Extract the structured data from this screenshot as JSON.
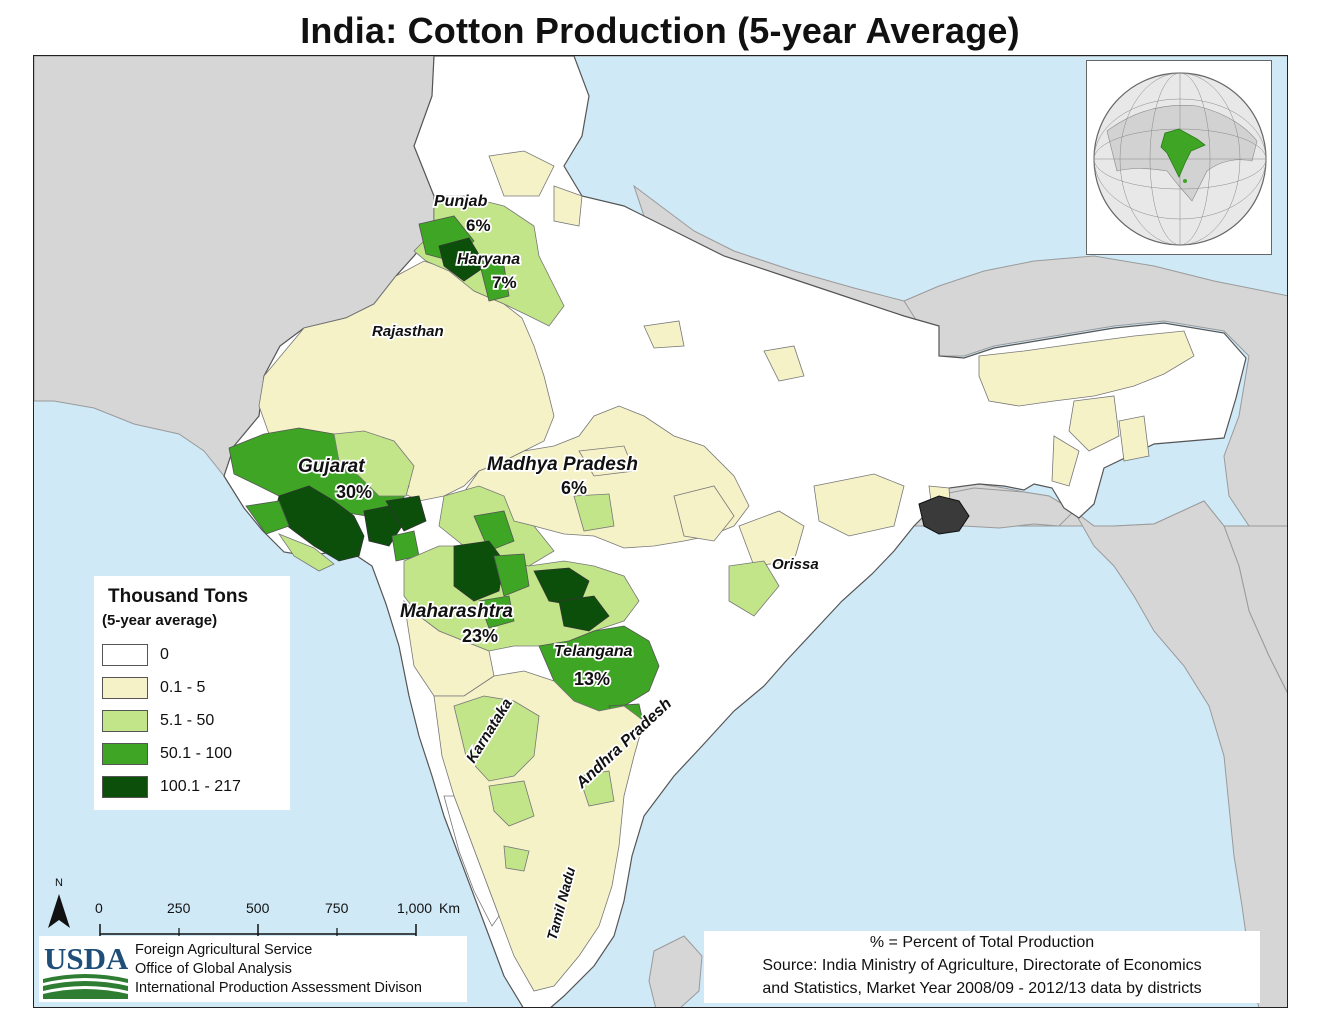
{
  "title": "India: Cotton Production (5-year Average)",
  "colors": {
    "water": "#cfe9f7",
    "neighbor_land": "#d6d6d6",
    "class_0": "#ffffff",
    "class_1": "#f5f2c8",
    "class_2": "#c2e589",
    "class_3": "#3fa524",
    "class_4": "#0b4f0b",
    "usda_blue": "#1f4e79",
    "usda_green": "#2e7d32"
  },
  "states": [
    {
      "name": "Punjab",
      "share": "6%"
    },
    {
      "name": "Haryana",
      "share": "7%"
    },
    {
      "name": "Rajasthan",
      "share": ""
    },
    {
      "name": "Gujarat",
      "share": "30%"
    },
    {
      "name": "Madhya Pradesh",
      "share": "6%"
    },
    {
      "name": "Maharashtra",
      "share": "23%"
    },
    {
      "name": "Telangana",
      "share": "13%"
    },
    {
      "name": "Orissa",
      "share": ""
    },
    {
      "name": "Karnataka",
      "share": ""
    },
    {
      "name": "Andhra Pradesh",
      "share": ""
    },
    {
      "name": "Tamil Nadu",
      "share": ""
    }
  ],
  "legend": {
    "title": "Thousand Tons",
    "subtitle": "(5-year average)",
    "classes": [
      {
        "label": "0",
        "color": "#ffffff"
      },
      {
        "label": "0.1 - 5",
        "color": "#f5f2c8"
      },
      {
        "label": "5.1 - 50",
        "color": "#c2e589"
      },
      {
        "label": "50.1 - 100",
        "color": "#3fa524"
      },
      {
        "label": "100.1 - 217",
        "color": "#0b4f0b"
      }
    ]
  },
  "scale_bar": {
    "north_label": "N",
    "ticks": [
      "0",
      "250",
      "500",
      "750",
      "1,000"
    ],
    "unit": "Km"
  },
  "agency": {
    "logo_text": "USDA",
    "lines": [
      "Foreign Agricultural Service",
      "Office of Global Analysis",
      "International Production Assessment Divison"
    ]
  },
  "source": {
    "lines": [
      "% = Percent of Total Production",
      "Source: India Ministry of Agriculture, Directorate of Economics",
      "and Statistics, Market Year 2008/09 - 2012/13 data by districts"
    ]
  }
}
